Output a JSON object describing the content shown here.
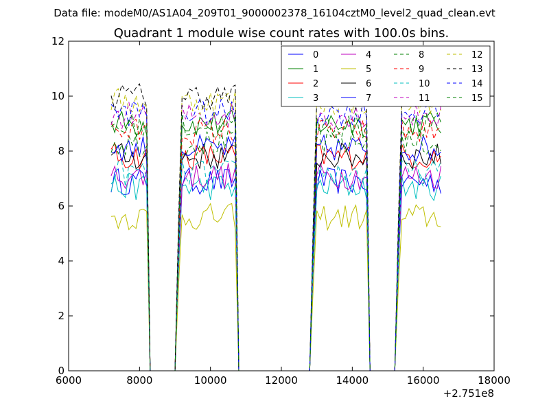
{
  "chart_data": {
    "type": "line",
    "suptitle": "Data file: modeM0/AS1A04_209T01_9000002378_16104cztM0_level2_quad_clean.evt",
    "title": "Quadrant 1 module wise count rates with 100.0s bins.",
    "xlabel": "",
    "ylabel": "",
    "x_offset_label": "+2.751e8",
    "xlim": [
      6000,
      18000
    ],
    "ylim": [
      0,
      12
    ],
    "x_ticks": [
      6000,
      8000,
      10000,
      12000,
      14000,
      16000,
      18000
    ],
    "y_ticks": [
      0,
      2,
      4,
      6,
      8,
      10,
      12
    ],
    "x_tick_labels": [
      "6000",
      "8000",
      "10000",
      "12000",
      "14000",
      "16000",
      "18000"
    ],
    "y_tick_labels": [
      "0",
      "2",
      "4",
      "6",
      "8",
      "10",
      "12"
    ],
    "grid": false,
    "legend_position": "top-right",
    "segments": [
      [
        7200,
        8200
      ],
      [
        9100,
        10700
      ],
      [
        12900,
        14400
      ],
      [
        15300,
        16500
      ]
    ],
    "series": [
      {
        "name": "0",
        "color": "#0000ff",
        "style": "solid",
        "level": 6.9
      },
      {
        "name": "1",
        "color": "#008000",
        "style": "solid",
        "level": 9.0
      },
      {
        "name": "2",
        "color": "#ff0000",
        "style": "solid",
        "level": 7.8
      },
      {
        "name": "3",
        "color": "#00bfbf",
        "style": "solid",
        "level": 6.7
      },
      {
        "name": "4",
        "color": "#bf00bf",
        "style": "solid",
        "level": 7.1
      },
      {
        "name": "5",
        "color": "#bfbf00",
        "style": "solid",
        "level": 5.6
      },
      {
        "name": "6",
        "color": "#000000",
        "style": "solid",
        "level": 7.8
      },
      {
        "name": "7",
        "color": "#0000ff",
        "style": "solid",
        "level": 8.1
      },
      {
        "name": "8",
        "color": "#008000",
        "style": "dashed",
        "level": 8.3
      },
      {
        "name": "9",
        "color": "#ff0000",
        "style": "dashed",
        "level": 8.7
      },
      {
        "name": "10",
        "color": "#00bfbf",
        "style": "dashed",
        "level": 7.2
      },
      {
        "name": "11",
        "color": "#bf00bf",
        "style": "dashed",
        "level": 9.3
      },
      {
        "name": "12",
        "color": "#bfbf00",
        "style": "dashed",
        "level": 9.8
      },
      {
        "name": "13",
        "color": "#000000",
        "style": "dashed",
        "level": 10.0
      },
      {
        "name": "14",
        "color": "#0000ff",
        "style": "dashed",
        "level": 9.4
      },
      {
        "name": "15",
        "color": "#008000",
        "style": "dashed",
        "level": 8.9
      }
    ]
  }
}
